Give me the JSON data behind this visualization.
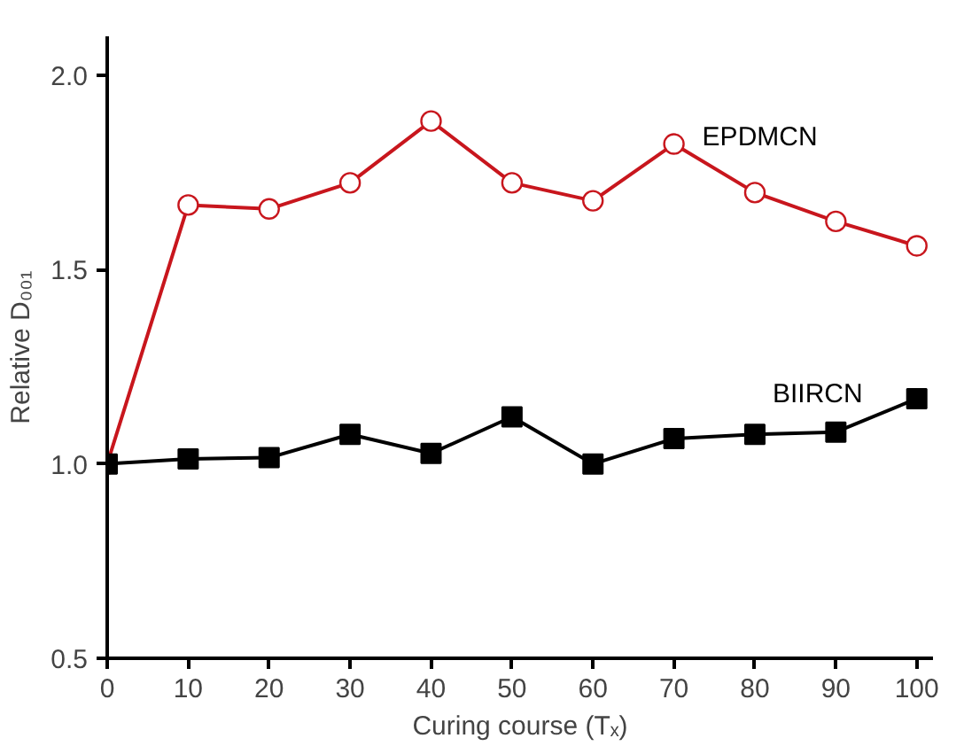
{
  "chart_data": {
    "type": "line",
    "xlabel": "Curing course (Tₓ)",
    "ylabel": "Relative D₀₀₁",
    "x": [
      0,
      10,
      20,
      30,
      40,
      50,
      60,
      70,
      80,
      90,
      100
    ],
    "series": [
      {
        "name": "EPDMCN",
        "color": "#c8161d",
        "marker": "circle",
        "values": [
          1.0,
          1.666,
          1.656,
          1.723,
          1.882,
          1.723,
          1.677,
          1.823,
          1.698,
          1.624,
          1.561
        ]
      },
      {
        "name": "BIIRCN",
        "color": "#000000",
        "marker": "square",
        "values": [
          1.0,
          1.013,
          1.016,
          1.076,
          1.027,
          1.121,
          1.0,
          1.065,
          1.076,
          1.082,
          1.168
        ]
      }
    ],
    "xlim": [
      0,
      102
    ],
    "ylim": [
      0.5,
      2.1
    ],
    "xticks": [
      0,
      10,
      20,
      30,
      40,
      50,
      60,
      70,
      80,
      90,
      100
    ],
    "yticks": [
      0.5,
      {
        "value": 1,
        "label": "1.0"
      },
      1.5,
      {
        "value": 2,
        "label": "2.0"
      }
    ],
    "grid": false,
    "line_style": "solid"
  }
}
